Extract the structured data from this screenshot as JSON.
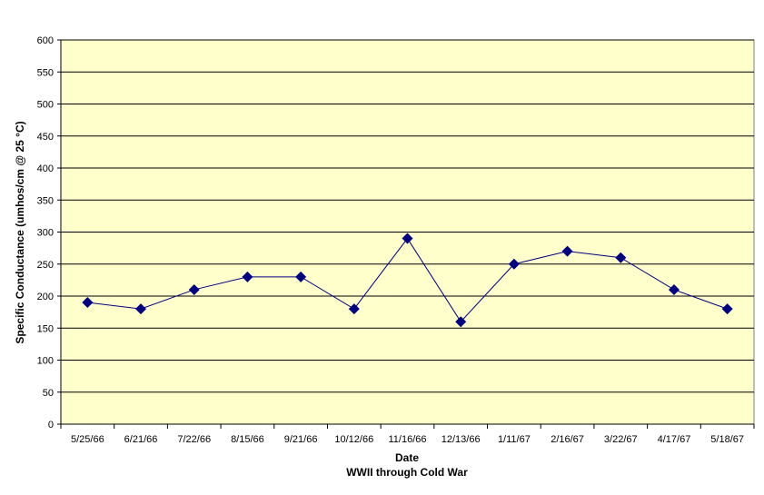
{
  "chart_data": {
    "type": "line",
    "title": "",
    "xlabel": "Date",
    "xlabel_sub": "WWII through Cold War",
    "ylabel": "Specific Conductance (umhos/cm @ 25 °C)",
    "ylim": [
      0,
      600
    ],
    "yticks": [
      0,
      50,
      100,
      150,
      200,
      250,
      300,
      350,
      400,
      450,
      500,
      550,
      600
    ],
    "grid": true,
    "legend": "none",
    "categories": [
      "5/25/66",
      "6/21/66",
      "7/22/66",
      "8/15/66",
      "9/21/66",
      "10/12/66",
      "11/16/66",
      "12/13/66",
      "1/11/67",
      "2/16/67",
      "3/22/67",
      "4/17/67",
      "5/18/67"
    ],
    "series": [
      {
        "values": [
          190,
          180,
          210,
          230,
          230,
          180,
          290,
          160,
          250,
          270,
          260,
          210,
          180
        ]
      }
    ],
    "colors": {
      "plot_background": "#FFFFCC",
      "line": "#000080",
      "marker": "#000080",
      "grid": "#000000"
    },
    "marker_icon": "diamond"
  }
}
